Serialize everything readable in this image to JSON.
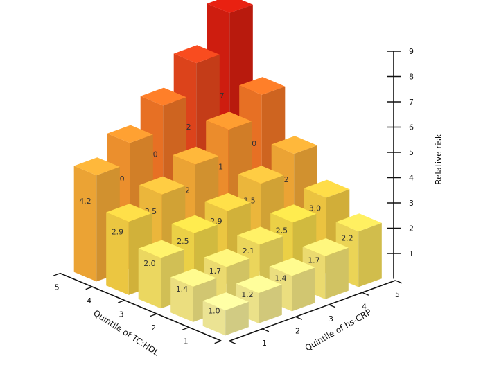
{
  "chart_data": {
    "type": "bar3d",
    "zlabel": "Relative risk",
    "xlabel": "Quintile of TC:HDL",
    "ylabel": "Quintile of hs-CRP",
    "x_categories": [
      "1",
      "2",
      "3",
      "4",
      "5"
    ],
    "y_categories": [
      "1",
      "2",
      "3",
      "4",
      "5"
    ],
    "z_ticks": [
      "1",
      "2",
      "3",
      "4",
      "5",
      "6",
      "7",
      "8",
      "9"
    ],
    "zlim": [
      0,
      9
    ],
    "values": [
      [
        1.0,
        1.2,
        1.4,
        1.7,
        2.2
      ],
      [
        1.4,
        1.7,
        2.1,
        2.5,
        3.0
      ],
      [
        2.0,
        2.5,
        2.9,
        3.5,
        4.2
      ],
      [
        2.9,
        3.5,
        4.2,
        5.1,
        6.0
      ],
      [
        4.2,
        5.0,
        6.0,
        7.2,
        8.7
      ]
    ],
    "color_scale": [
      "#fff7a0",
      "#ffe24a",
      "#ffb43a",
      "#ff8a2a",
      "#f04a1e",
      "#e02010"
    ]
  }
}
